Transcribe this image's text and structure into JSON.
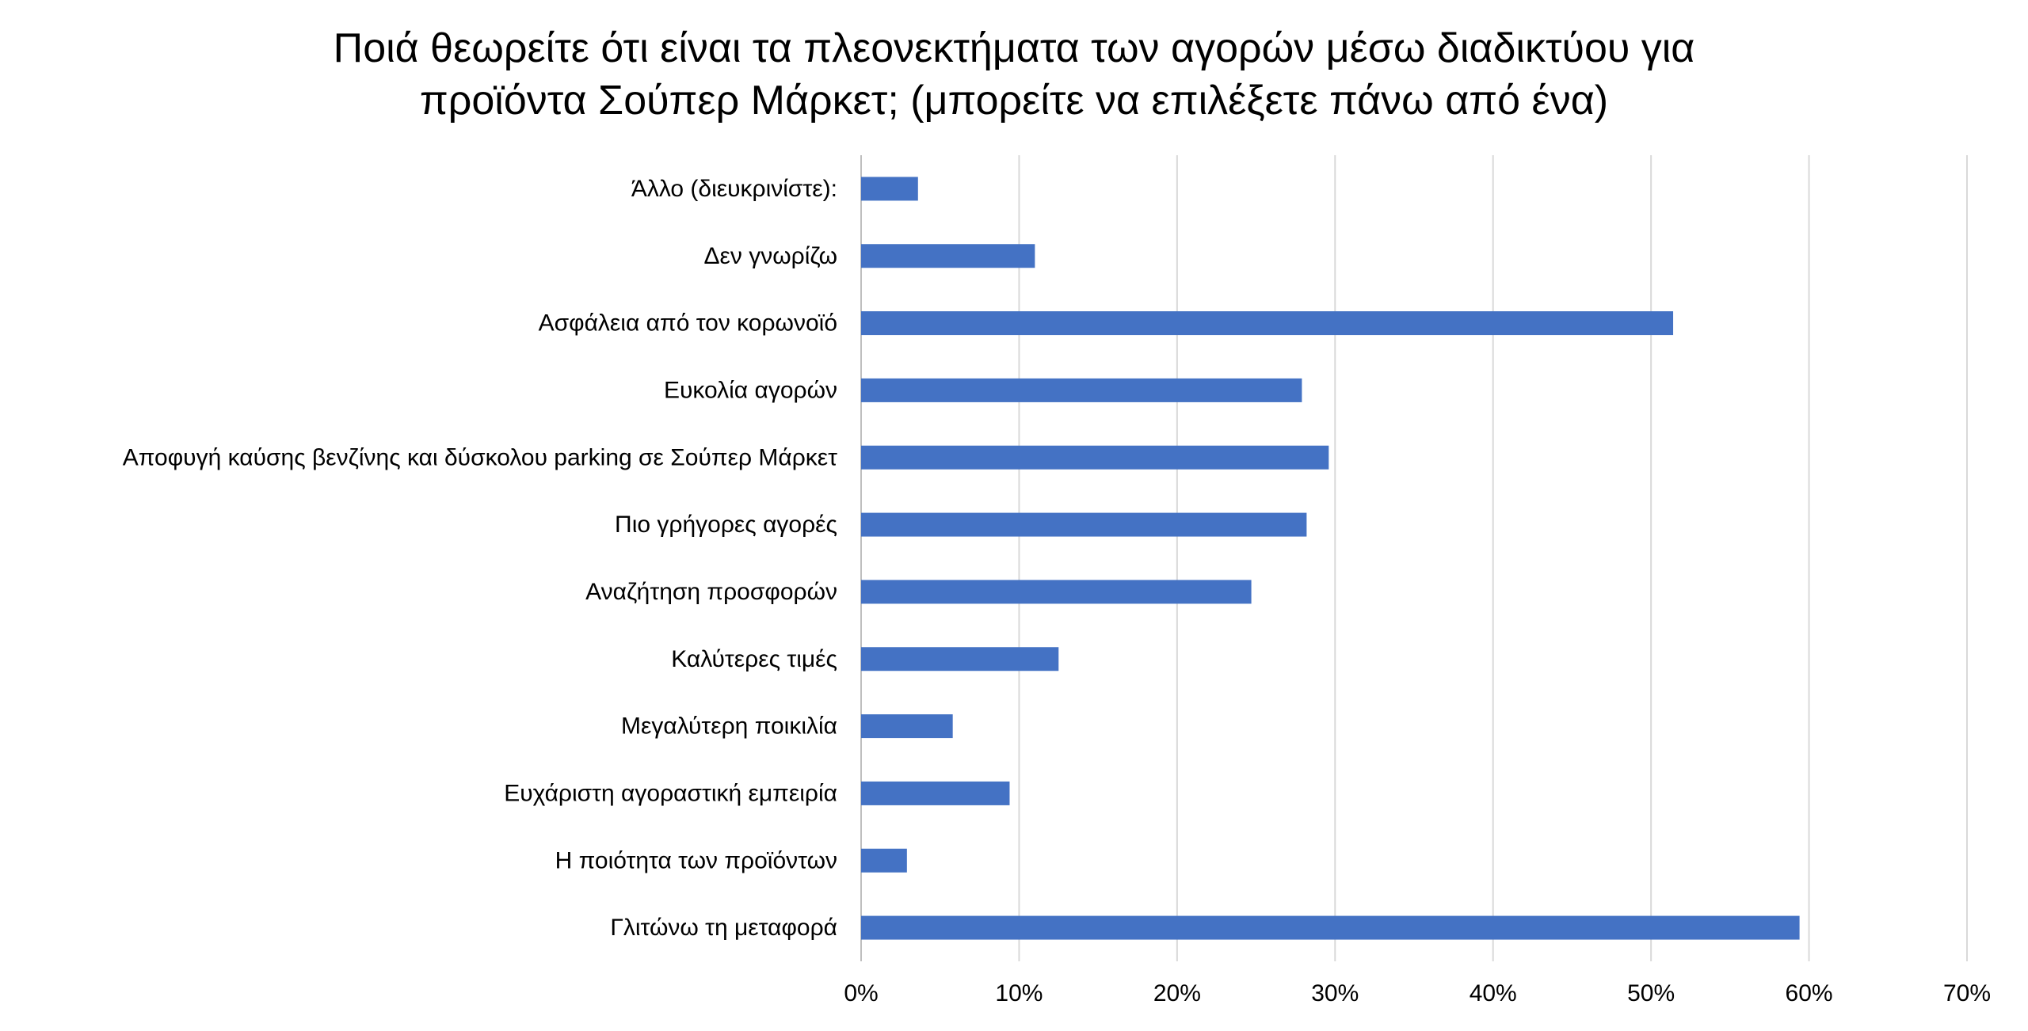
{
  "chart_data": {
    "type": "bar",
    "orientation": "horizontal",
    "title_lines": [
      "Ποιά θεωρείτε ότι είναι τα πλεονεκτήματα των αγορών μέσω διαδικτύου για",
      "προϊόντα Σούπερ Μάρκετ; (μπορείτε να επιλέξετε πάνω από ένα)"
    ],
    "categories": [
      "Άλλο (διευκρινίστε):",
      "Δεν γνωρίζω",
      "Ασφάλεια από τον κορωνοϊό",
      "Ευκολία αγορών",
      "Αποφυγή καύσης βενζίνης και δύσκολου parking σε Σούπερ Μάρκετ",
      "Πιο γρήγορες αγορές",
      "Αναζήτηση προσφορών",
      "Καλύτερες τιμές",
      "Μεγαλύτερη ποικιλία",
      "Ευχάριστη αγοραστική εμπειρία",
      "Η ποιότητα των προϊόντων",
      "Γλιτώνω τη μεταφορά"
    ],
    "values": [
      3.6,
      11.0,
      51.4,
      27.9,
      29.6,
      28.2,
      24.7,
      12.5,
      5.8,
      9.4,
      2.9,
      59.4
    ],
    "xlim": [
      0,
      70
    ],
    "xticks": [
      0,
      10,
      20,
      30,
      40,
      50,
      60,
      70
    ],
    "xtick_labels": [
      "0%",
      "10%",
      "20%",
      "30%",
      "40%",
      "50%",
      "60%",
      "70%"
    ],
    "grid": true,
    "bar_color": "#4472C4",
    "grid_color": "#D9D9D9",
    "axis_color": "#BFBFBF"
  }
}
